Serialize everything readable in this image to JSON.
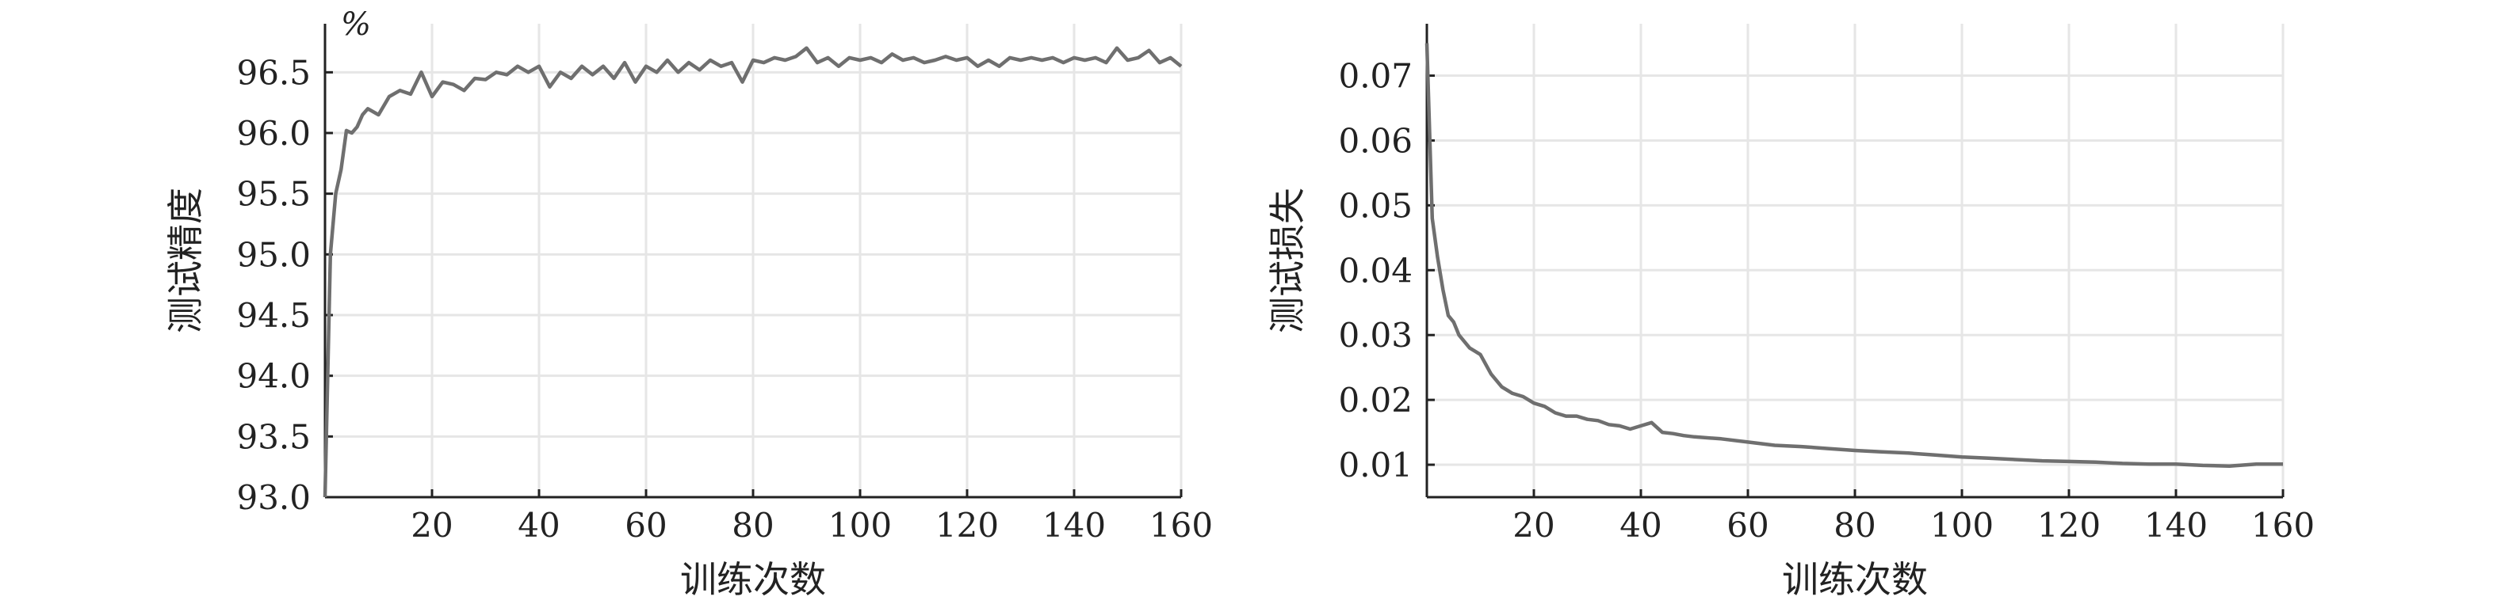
{
  "chart_data": [
    {
      "type": "line",
      "title": "",
      "xlabel": "训练次数",
      "ylabel": "测试精度",
      "unit": "%",
      "xlim": [
        0,
        160
      ],
      "ylim": [
        93.0,
        96.9
      ],
      "xticks": [
        20,
        40,
        60,
        80,
        100,
        120,
        140,
        160
      ],
      "xtick_labels": [
        "20",
        "40",
        "60",
        "80",
        "100",
        "120",
        "140",
        "160"
      ],
      "yticks": [
        93.0,
        93.5,
        94.0,
        94.5,
        95.0,
        95.5,
        96.0,
        96.5
      ],
      "ytick_labels": [
        "93.0",
        "93.5",
        "94.0",
        "94.5",
        "95.0",
        "95.5",
        "96.0",
        "96.5"
      ],
      "grid": true,
      "series_color": "#6f6f6f",
      "series": [
        {
          "x": [
            0,
            1,
            2,
            3,
            4,
            5,
            6,
            7,
            8,
            10,
            12,
            14,
            16,
            18,
            20,
            22,
            24,
            26,
            28,
            30,
            32,
            34,
            36,
            38,
            40,
            42,
            44,
            46,
            48,
            50,
            52,
            54,
            56,
            58,
            60,
            62,
            64,
            66,
            68,
            70,
            72,
            74,
            76,
            78,
            80,
            82,
            84,
            86,
            88,
            90,
            92,
            94,
            96,
            98,
            100,
            102,
            104,
            106,
            108,
            110,
            112,
            114,
            116,
            118,
            120,
            122,
            124,
            126,
            128,
            130,
            132,
            134,
            136,
            138,
            140,
            142,
            144,
            146,
            148,
            150,
            152,
            154,
            156,
            158,
            160
          ],
          "values": [
            93.0,
            95.0,
            95.5,
            95.7,
            96.02,
            96.0,
            96.05,
            96.15,
            96.2,
            96.15,
            96.3,
            96.35,
            96.32,
            96.5,
            96.3,
            96.42,
            96.4,
            96.35,
            96.45,
            96.44,
            96.5,
            96.48,
            96.55,
            96.5,
            96.55,
            96.38,
            96.5,
            96.45,
            96.55,
            96.48,
            96.55,
            96.45,
            96.58,
            96.42,
            96.55,
            96.5,
            96.6,
            96.5,
            96.58,
            96.52,
            96.6,
            96.55,
            96.58,
            96.42,
            96.6,
            96.58,
            96.62,
            96.6,
            96.63,
            96.7,
            96.58,
            96.62,
            96.55,
            96.62,
            96.6,
            96.62,
            96.58,
            96.65,
            96.6,
            96.62,
            96.58,
            96.6,
            96.63,
            96.6,
            96.62,
            96.55,
            96.6,
            96.55,
            96.62,
            96.6,
            96.62,
            96.6,
            96.62,
            96.58,
            96.62,
            96.6,
            96.62,
            96.58,
            96.7,
            96.6,
            96.62,
            96.68,
            96.58,
            96.62,
            96.55
          ]
        }
      ]
    },
    {
      "type": "line",
      "title": "",
      "xlabel": "训练次数",
      "ylabel": "测试损失",
      "xlim": [
        0,
        160
      ],
      "ylim": [
        0.005,
        0.078
      ],
      "xticks": [
        20,
        40,
        60,
        80,
        100,
        120,
        140,
        160
      ],
      "xtick_labels": [
        "20",
        "40",
        "60",
        "80",
        "100",
        "120",
        "140",
        "160"
      ],
      "yticks": [
        0.01,
        0.02,
        0.03,
        0.04,
        0.05,
        0.06,
        0.07
      ],
      "ytick_labels": [
        "0.01",
        "0.02",
        "0.03",
        "0.04",
        "0.05",
        "0.06",
        "0.07"
      ],
      "grid": true,
      "series_color": "#6f6f6f",
      "series": [
        {
          "x": [
            0,
            1,
            2,
            3,
            4,
            5,
            6,
            7,
            8,
            9,
            10,
            12,
            14,
            16,
            18,
            20,
            22,
            24,
            26,
            28,
            30,
            32,
            34,
            36,
            38,
            40,
            42,
            44,
            46,
            48,
            50,
            55,
            60,
            65,
            70,
            75,
            80,
            85,
            90,
            95,
            100,
            105,
            110,
            115,
            120,
            125,
            130,
            135,
            140,
            145,
            150,
            155,
            160
          ],
          "values": [
            0.075,
            0.048,
            0.042,
            0.037,
            0.033,
            0.032,
            0.03,
            0.029,
            0.028,
            0.0275,
            0.027,
            0.024,
            0.022,
            0.021,
            0.0205,
            0.0195,
            0.019,
            0.018,
            0.0175,
            0.0175,
            0.017,
            0.0168,
            0.0162,
            0.016,
            0.0155,
            0.016,
            0.0165,
            0.015,
            0.0148,
            0.0145,
            0.0143,
            0.014,
            0.0135,
            0.013,
            0.0128,
            0.0125,
            0.0122,
            0.012,
            0.0118,
            0.0115,
            0.0112,
            0.011,
            0.0108,
            0.0106,
            0.0105,
            0.0104,
            0.0102,
            0.0101,
            0.0101,
            0.0099,
            0.0098,
            0.0101,
            0.0101
          ]
        }
      ]
    }
  ]
}
